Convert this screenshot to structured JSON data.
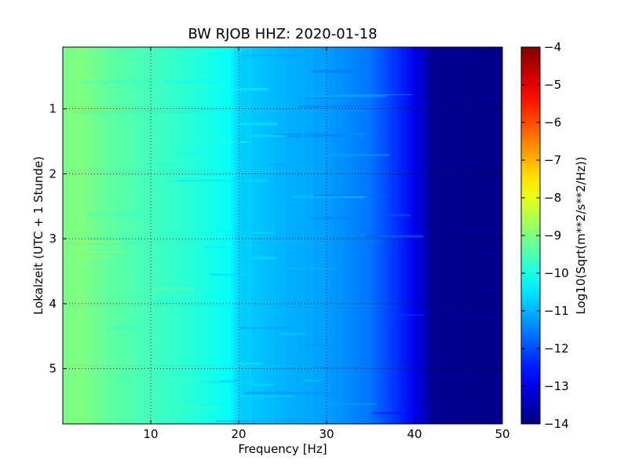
{
  "chart_data": [
    {
      "type": "heatmap",
      "title": "BW RJOB HHZ: 2020-01-18",
      "xlabel": "Frequency [Hz]",
      "ylabel": "Lokalzeit (UTC + 1 Stunde)",
      "xlim": [
        0,
        50
      ],
      "ylim": [
        5.85,
        0.05
      ],
      "y_inverted": true,
      "grid": true,
      "x_ticks": [
        10,
        20,
        30,
        40,
        50
      ],
      "x_tick_labels": [
        "10",
        "20",
        "30",
        "40",
        "50"
      ],
      "y_ticks": [
        1,
        2,
        3,
        4,
        5
      ],
      "y_tick_labels": [
        "1",
        "2",
        "3",
        "4",
        "5"
      ],
      "colormap": "jet",
      "value_range": [
        -14,
        -4
      ],
      "spectral_profile": {
        "frequency_hz": [
          0,
          2,
          5,
          10,
          15,
          19,
          20,
          25,
          30,
          35,
          38,
          40,
          41,
          42,
          50
        ],
        "log10_psd": [
          -9.1,
          -9.0,
          -9.3,
          -9.6,
          -9.9,
          -10.2,
          -10.7,
          -11.0,
          -11.2,
          -11.6,
          -12.3,
          -12.9,
          -13.3,
          -13.8,
          -13.9
        ]
      }
    },
    {
      "type": "colorbar",
      "label": "Log10(Sqrt(m**2/s**2/Hz))",
      "range": [
        -14,
        -4
      ],
      "ticks": [
        -14,
        -13,
        -12,
        -11,
        -10,
        -9,
        -8,
        -7,
        -6,
        -5,
        -4
      ],
      "tick_labels": [
        "−14",
        "−13",
        "−12",
        "−11",
        "−10",
        "−9",
        "−8",
        "−7",
        "−6",
        "−5",
        "−4"
      ],
      "colormap": "jet"
    }
  ]
}
